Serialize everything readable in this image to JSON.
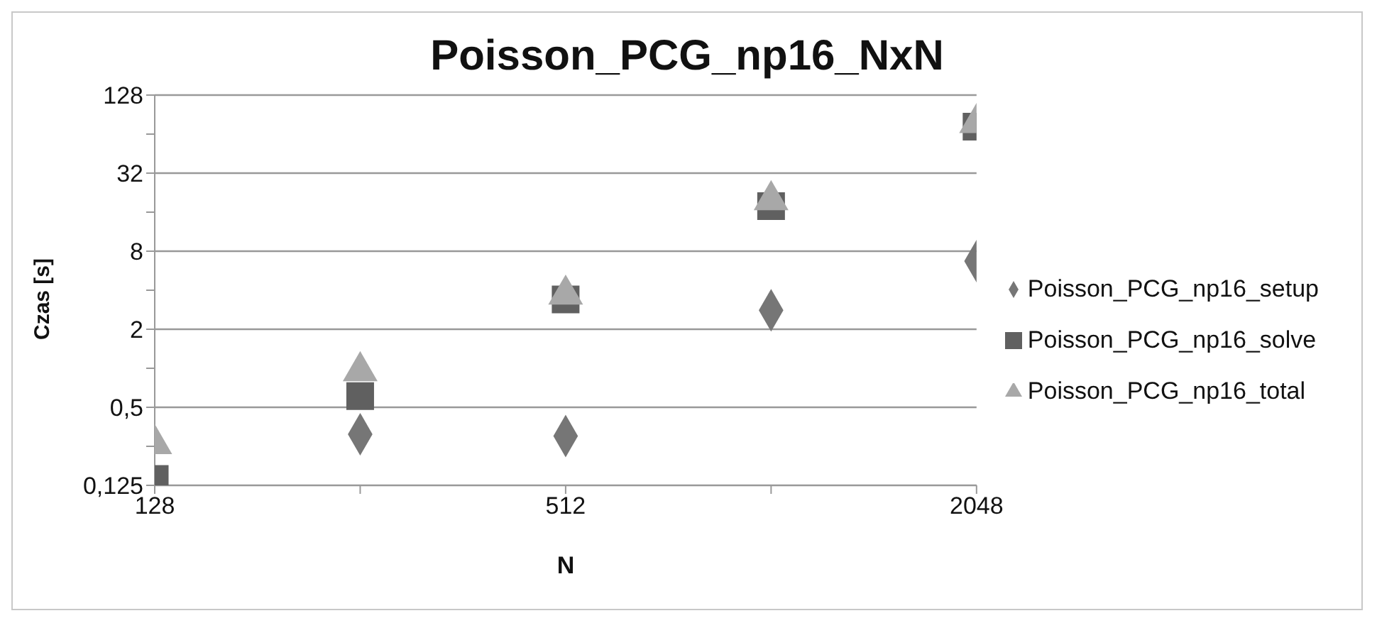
{
  "chart_data": {
    "type": "scatter",
    "title": "Poisson_PCG_np16_NxN",
    "xlabel": "N",
    "ylabel": "Czas [s]",
    "x": [
      128,
      256,
      512,
      1024,
      2048
    ],
    "series": [
      {
        "name": "Poisson_PCG_np16_setup",
        "color": "#767676",
        "marker": "diamond",
        "values": [
          null,
          0.31,
          0.3,
          2.8,
          6.7
        ]
      },
      {
        "name": "Poisson_PCG_np16_solve",
        "color": "#606060",
        "marker": "square",
        "values": [
          0.14,
          0.61,
          3.4,
          17.8,
          73
        ]
      },
      {
        "name": "Poisson_PCG_np16_total",
        "color": "#a8a8a8",
        "marker": "triangle",
        "values": [
          0.26,
          0.95,
          3.7,
          19.8,
          78
        ]
      }
    ],
    "log": "xy",
    "xlim": [
      128,
      2048
    ],
    "xticks": [
      128,
      {
        "value": 256,
        "label": null
      },
      512,
      {
        "value": 1024,
        "label": null
      },
      2048
    ],
    "ylim": [
      0.125,
      128
    ],
    "yticks": [
      {
        "value": 0.125,
        "label": "0,125"
      },
      {
        "value": 0.25,
        "label": null
      },
      {
        "value": 0.5,
        "label": "0,5"
      },
      {
        "value": 1,
        "label": null
      },
      2,
      {
        "value": 4,
        "label": null
      },
      8,
      {
        "value": 16,
        "label": null
      },
      32,
      {
        "value": 64,
        "label": null
      },
      128
    ],
    "grid": "y",
    "legend": "right"
  }
}
